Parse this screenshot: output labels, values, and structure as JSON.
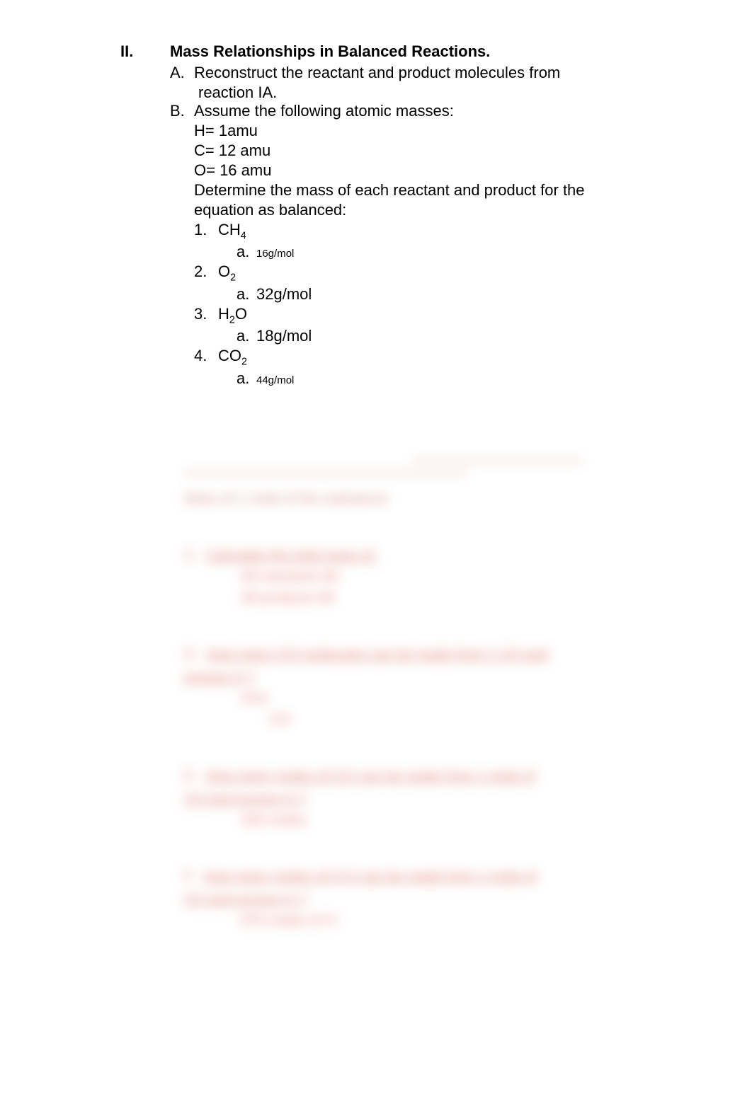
{
  "section": {
    "roman": "II.",
    "title": "Mass Relationships in Balanced Reactions.",
    "A": {
      "letter": "A.",
      "line1": "Reconstruct the reactant and product molecules from",
      "line2": "reaction IA."
    },
    "B": {
      "letter": "B.",
      "line1": "Assume the following atomic masses:",
      "masses": {
        "H": "H= 1amu",
        "C": "C= 12 amu",
        "O": "O= 16 amu"
      },
      "instr1": "Determine the mass of each reactant and product for the",
      "instr2": "equation as balanced:",
      "items": [
        {
          "num": "1.",
          "formula_base": "CH",
          "formula_sub": "4",
          "a": "a.",
          "a_val": "16g/mol",
          "a_small": true
        },
        {
          "num": "2.",
          "formula_base": "O",
          "formula_sub": "2",
          "a": "a.",
          "a_val": "32g/mol",
          "a_small": false
        },
        {
          "num": "3.",
          "formula_base": "H",
          "formula_sub": "2",
          "formula_tail": "O",
          "a": "a.",
          "a_val": "18g/mol",
          "a_small": false
        },
        {
          "num": "4.",
          "formula_base": "CO",
          "formula_sub": "2",
          "a": "a.",
          "a_val": "44g/mol",
          "a_small": true
        }
      ]
    }
  },
  "blurred": {
    "heading": "Mass of 1 mole of the substance",
    "C": {
      "letter": "C.",
      "text": "Calculate the total mass of:",
      "sub1": "All reactants  80",
      "sub2": "All products  80"
    },
    "D": {
      "letter": "D.",
      "line1": "How many CO      molecules can be made from 1 CH        and",
      "line2": "excess O    ?",
      "ans_label": "One",
      "ans_sub": "CO"
    },
    "E": {
      "letter": "E.",
      "line1": "How many moles of CO       can be made from 1 mole of",
      "line2": "CH  and excess O     ?",
      "ans": "435 moles"
    },
    "F": {
      "letter": "F.",
      "line1": "How many moles of H    O can be made from 1 mole of",
      "line2": "CH  and excess O     ?",
      "ans": "870 moles of    O"
    }
  },
  "style": {
    "text_color": "#000000",
    "blur_color": "#e06a5a",
    "background": "#ffffff",
    "title_fontsize": 22,
    "body_fontsize": 22,
    "small_fontsize": 15
  }
}
